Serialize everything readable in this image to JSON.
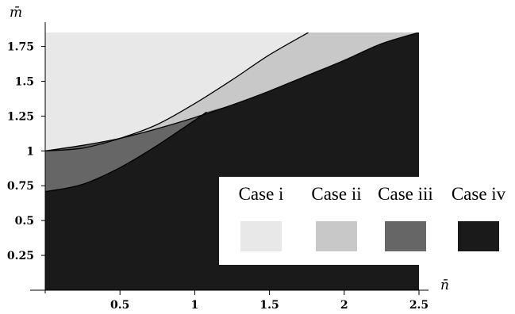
{
  "chart_data": {
    "type": "area",
    "title": "",
    "xlabel": "n̄",
    "ylabel": "m̄",
    "xlim": [
      0,
      2.5
    ],
    "ylim": [
      0,
      1.85
    ],
    "x_ticks": [
      {
        "value": 0.5,
        "label": "0.5"
      },
      {
        "value": 1,
        "label": "1"
      },
      {
        "value": 1.5,
        "label": "1.5"
      },
      {
        "value": 2,
        "label": "2"
      },
      {
        "value": 2.5,
        "label": "2.5"
      }
    ],
    "y_ticks": [
      {
        "value": 0.25,
        "label": "0.25"
      },
      {
        "value": 0.5,
        "label": "0.5"
      },
      {
        "value": 0.75,
        "label": "0.75"
      },
      {
        "value": 1,
        "label": "1"
      },
      {
        "value": 1.25,
        "label": "1.25"
      },
      {
        "value": 1.5,
        "label": "1.5"
      },
      {
        "value": 1.75,
        "label": "1.75"
      }
    ],
    "boundaries": {
      "upper": {
        "x": [
          0,
          0.25,
          0.5,
          0.75,
          1.0,
          1.25,
          1.5,
          1.76
        ],
        "y": [
          1.0,
          1.02,
          1.09,
          1.19,
          1.34,
          1.51,
          1.69,
          1.85
        ]
      },
      "middle": {
        "x": [
          0,
          0.25,
          0.5,
          0.75,
          1.0,
          1.25,
          1.5,
          1.75,
          2.0,
          2.25,
          2.5
        ],
        "y": [
          1.0,
          1.04,
          1.09,
          1.16,
          1.24,
          1.33,
          1.43,
          1.54,
          1.65,
          1.77,
          1.85
        ]
      },
      "lower": {
        "x": [
          0,
          0.25,
          0.5,
          0.75,
          1.0,
          1.08
        ],
        "y": [
          0.707,
          0.76,
          0.88,
          1.04,
          1.22,
          1.28
        ]
      }
    },
    "series": [
      {
        "name": "Case i",
        "color": "#e8e8e8"
      },
      {
        "name": "Case ii",
        "color": "#c8c8c8"
      },
      {
        "name": "Case iii",
        "color": "#666666"
      },
      {
        "name": "Case iv",
        "color": "#1a1a1a"
      }
    ],
    "legend_position": "bottom-right",
    "grid": false
  }
}
